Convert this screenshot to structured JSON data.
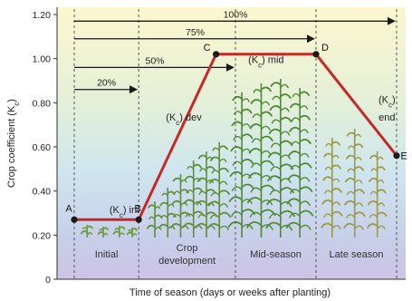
{
  "chart_data": {
    "type": "line",
    "xlabel": "Time of season (days or weeks after planting)",
    "ylabel": "Crop coefficient (K",
    "ylabel_sub": "c",
    "ylabel_close": ")",
    "ylim": [
      0,
      1.2
    ],
    "yticks": [
      "0",
      "0.20",
      "0.40",
      "0.60",
      "0.80",
      "1.00",
      "1.20"
    ],
    "xlim": [
      0,
      100
    ],
    "stage_boundaries": [
      20,
      50,
      75
    ],
    "stages": [
      {
        "label": "Initial",
        "label2": "",
        "center": 10
      },
      {
        "label": "Crop",
        "label2": "development",
        "center": 35
      },
      {
        "label": "Mid-season",
        "label2": "",
        "center": 62.5
      },
      {
        "label": "Late season",
        "label2": "",
        "center": 87.5
      }
    ],
    "points": [
      {
        "name": "A",
        "x": 0,
        "y": 0.27
      },
      {
        "name": "B",
        "x": 20,
        "y": 0.27
      },
      {
        "name": "C",
        "x": 44,
        "y": 1.02
      },
      {
        "name": "D",
        "x": 75,
        "y": 1.02
      },
      {
        "name": "E",
        "x": 100,
        "y": 0.56
      }
    ],
    "progress_arrows": [
      {
        "label": "20%",
        "end": 20,
        "y": 0.86
      },
      {
        "label": "50%",
        "end": 50,
        "y": 0.96
      },
      {
        "label": "75%",
        "end": 75,
        "y": 1.09
      },
      {
        "label": "100%",
        "end": 100,
        "y": 1.17
      }
    ],
    "annotations": [
      {
        "pre": "(K",
        "sub": "c",
        "post": ") ini",
        "x": 15.5,
        "y": 0.3
      },
      {
        "pre": "(K",
        "sub": "c",
        "post": ") dev",
        "x": 34,
        "y": 0.72
      },
      {
        "pre": "(K",
        "sub": "c",
        "post": ") mid",
        "x": 59.5,
        "y": 0.98
      },
      {
        "pre": "(K",
        "sub": "c",
        "post": ")",
        "x": 97,
        "y": 0.8
      },
      {
        "pre": "end",
        "sub": "",
        "post": "",
        "x": 97,
        "y": 0.72
      }
    ],
    "colors": {
      "curve": "#c62828",
      "point": "#1a1a1a",
      "arrow": "#1a1a1a",
      "stage_divider": "#555555",
      "top_band": "#fdf6c8",
      "mid_band": "#c9e4ef",
      "bottom_band": "#cfc8e8",
      "plant": "#5f8f3a"
    }
  }
}
